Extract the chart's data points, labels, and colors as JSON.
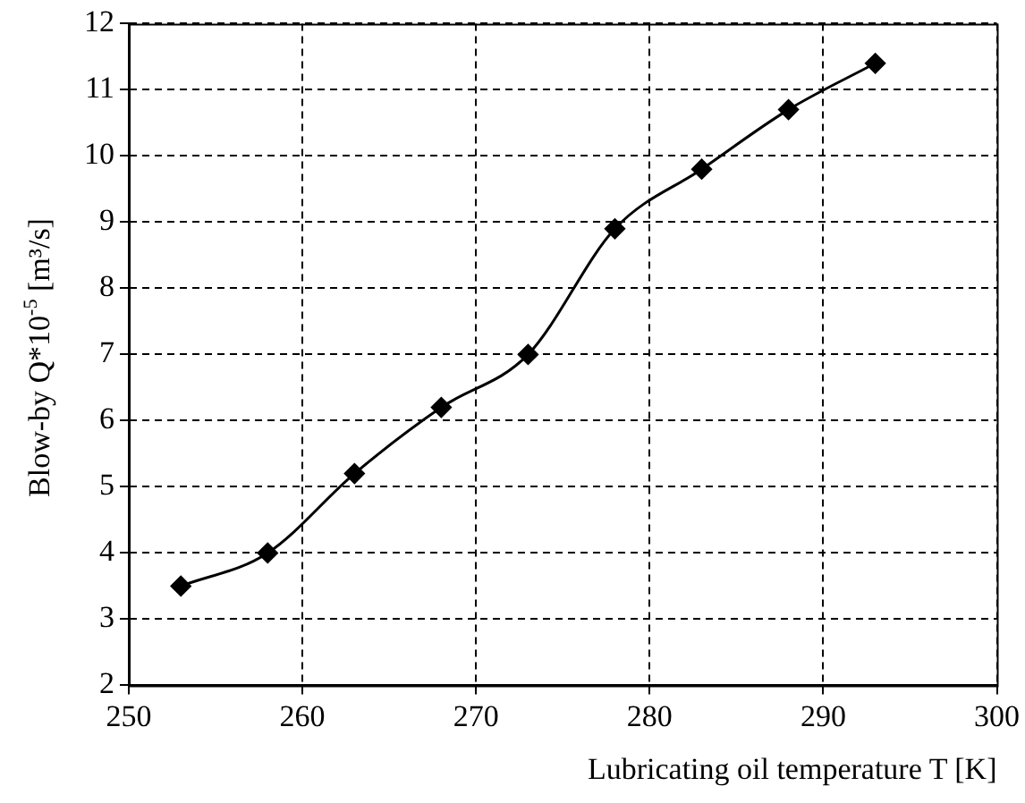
{
  "chart_data": {
    "type": "line",
    "xlabel": "Lubricating oil temperature T [K]",
    "ylabel": "Blow-by Q*10$^{-5}$ [m³/s]",
    "x": [
      253,
      258,
      263,
      268,
      273,
      278,
      283,
      288,
      293
    ],
    "series": [
      {
        "color": "#000000",
        "values": [
          3.5,
          4.0,
          5.2,
          6.2,
          7.0,
          8.9,
          9.8,
          10.7,
          11.4
        ]
      }
    ],
    "xlim": [
      250,
      300
    ],
    "xticks": [
      250,
      260,
      270,
      280,
      290,
      300
    ],
    "ylim": [
      2,
      12
    ],
    "yticks": [
      2,
      3,
      4,
      5,
      6,
      7,
      8,
      9,
      10,
      11,
      12
    ],
    "grid": true,
    "legend": false,
    "marker": "diamond",
    "line_style": "solid"
  }
}
